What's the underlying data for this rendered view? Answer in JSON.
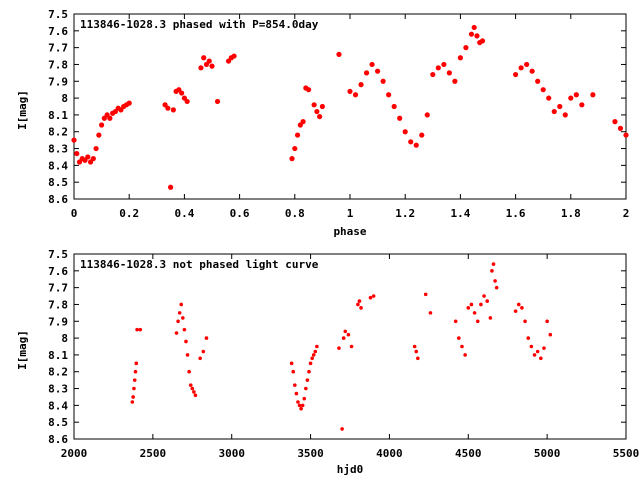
{
  "chart_data": [
    {
      "type": "scatter",
      "title": "113846-1028.3 phased with P=854.0day",
      "xlabel": "phase",
      "ylabel": "I[mag]",
      "xlim": [
        0,
        2
      ],
      "ylim": [
        7.5,
        8.6
      ],
      "y_inverted": true,
      "xticks": [
        "0",
        "0.2",
        "0.4",
        "0.6",
        "0.8",
        "1",
        "1.2",
        "1.4",
        "1.6",
        "1.8",
        "2"
      ],
      "yticks": [
        "7.5",
        "7.6",
        "7.7",
        "7.8",
        "7.9",
        "8",
        "8.1",
        "8.2",
        "8.3",
        "8.4",
        "8.5",
        "8.6"
      ],
      "grid": false,
      "marker_color": "#ff0000",
      "series": [
        {
          "x": [
            0.0,
            0.01,
            0.02,
            0.03,
            0.04,
            0.05,
            0.06,
            0.07,
            0.08,
            0.09,
            0.1,
            0.11,
            0.12,
            0.13,
            0.14,
            0.15,
            0.16,
            0.17,
            0.18,
            0.19,
            0.2,
            0.33,
            0.34,
            0.35,
            0.36,
            0.37,
            0.38,
            0.39,
            0.4,
            0.41,
            0.46,
            0.47,
            0.48,
            0.49,
            0.5,
            0.52,
            0.56,
            0.57,
            0.58,
            0.79,
            0.8,
            0.81,
            0.82,
            0.83,
            0.84,
            0.85,
            0.87,
            0.88,
            0.89,
            0.9,
            0.96,
            1.0,
            1.02,
            1.04,
            1.06,
            1.08,
            1.1,
            1.12,
            1.14,
            1.16,
            1.18,
            1.2,
            1.22,
            1.24,
            1.26,
            1.28,
            1.3,
            1.32,
            1.34,
            1.36,
            1.38,
            1.4,
            1.42,
            1.44,
            1.45,
            1.46,
            1.47,
            1.48,
            1.6,
            1.62,
            1.64,
            1.66,
            1.68,
            1.7,
            1.72,
            1.74,
            1.76,
            1.78,
            1.8,
            1.82,
            1.84,
            1.88,
            1.96,
            1.98,
            2.0
          ],
          "y": [
            8.25,
            8.33,
            8.38,
            8.36,
            8.37,
            8.35,
            8.38,
            8.36,
            8.3,
            8.22,
            8.16,
            8.12,
            8.1,
            8.12,
            8.09,
            8.08,
            8.06,
            8.07,
            8.05,
            8.04,
            8.03,
            8.04,
            8.06,
            8.53,
            8.07,
            7.96,
            7.95,
            7.97,
            8.0,
            8.02,
            7.82,
            7.76,
            7.8,
            7.78,
            7.81,
            8.02,
            7.78,
            7.76,
            7.75,
            8.36,
            8.3,
            8.22,
            8.16,
            8.14,
            7.94,
            7.95,
            8.04,
            8.08,
            8.11,
            8.05,
            7.74,
            7.96,
            7.98,
            7.92,
            7.85,
            7.8,
            7.84,
            7.9,
            7.98,
            8.05,
            8.12,
            8.2,
            8.26,
            8.28,
            8.22,
            8.1,
            7.86,
            7.82,
            7.8,
            7.85,
            7.9,
            7.76,
            7.7,
            7.62,
            7.58,
            7.63,
            7.67,
            7.66,
            7.86,
            7.82,
            7.8,
            7.84,
            7.9,
            7.95,
            8.0,
            8.08,
            8.05,
            8.1,
            8.0,
            7.98,
            8.04,
            7.98,
            8.14,
            8.18,
            8.22
          ]
        }
      ]
    },
    {
      "type": "scatter",
      "title": "113846-1028.3 not phased light curve",
      "xlabel": "hjd0",
      "ylabel": "I[mag]",
      "xlim": [
        2000,
        5500
      ],
      "ylim": [
        7.5,
        8.6
      ],
      "y_inverted": true,
      "xticks": [
        "2000",
        "2500",
        "3000",
        "3500",
        "4000",
        "4500",
        "5000",
        "5500"
      ],
      "yticks": [
        "7.5",
        "7.6",
        "7.7",
        "7.8",
        "7.9",
        "8",
        "8.1",
        "8.2",
        "8.3",
        "8.4",
        "8.5",
        "8.6"
      ],
      "grid": false,
      "marker_color": "#ff0000",
      "series": [
        {
          "x": [
            2370,
            2375,
            2380,
            2385,
            2390,
            2395,
            2400,
            2420,
            2650,
            2660,
            2670,
            2680,
            2690,
            2700,
            2710,
            2720,
            2730,
            2740,
            2750,
            2760,
            2770,
            2800,
            2820,
            2840,
            3380,
            3390,
            3400,
            3410,
            3420,
            3430,
            3440,
            3450,
            3460,
            3470,
            3480,
            3490,
            3500,
            3510,
            3520,
            3530,
            3540,
            3680,
            3700,
            3710,
            3720,
            3740,
            3760,
            3800,
            3810,
            3820,
            3880,
            3900,
            4160,
            4170,
            4180,
            4230,
            4260,
            4420,
            4440,
            4460,
            4480,
            4500,
            4520,
            4540,
            4560,
            4580,
            4600,
            4620,
            4640,
            4650,
            4660,
            4670,
            4680,
            4800,
            4820,
            4840,
            4860,
            4880,
            4900,
            4920,
            4940,
            4960,
            4980,
            5000,
            5020
          ],
          "y": [
            8.38,
            8.35,
            8.3,
            8.25,
            8.2,
            8.15,
            7.95,
            7.95,
            7.97,
            7.9,
            7.85,
            7.8,
            7.88,
            7.95,
            8.02,
            8.1,
            8.2,
            8.28,
            8.3,
            8.32,
            8.34,
            8.12,
            8.08,
            8.0,
            8.15,
            8.2,
            8.28,
            8.33,
            8.38,
            8.4,
            8.42,
            8.4,
            8.36,
            8.3,
            8.25,
            8.2,
            8.15,
            8.12,
            8.1,
            8.08,
            8.05,
            8.06,
            8.54,
            8.0,
            7.96,
            7.98,
            8.05,
            7.8,
            7.78,
            7.82,
            7.76,
            7.75,
            8.05,
            8.08,
            8.12,
            7.74,
            7.85,
            7.9,
            8.0,
            8.05,
            8.1,
            7.82,
            7.8,
            7.85,
            7.9,
            7.8,
            7.75,
            7.78,
            7.88,
            7.6,
            7.56,
            7.66,
            7.7,
            7.84,
            7.8,
            7.82,
            7.9,
            8.0,
            8.05,
            8.1,
            8.08,
            8.12,
            8.06,
            7.9,
            7.98
          ]
        }
      ]
    }
  ]
}
